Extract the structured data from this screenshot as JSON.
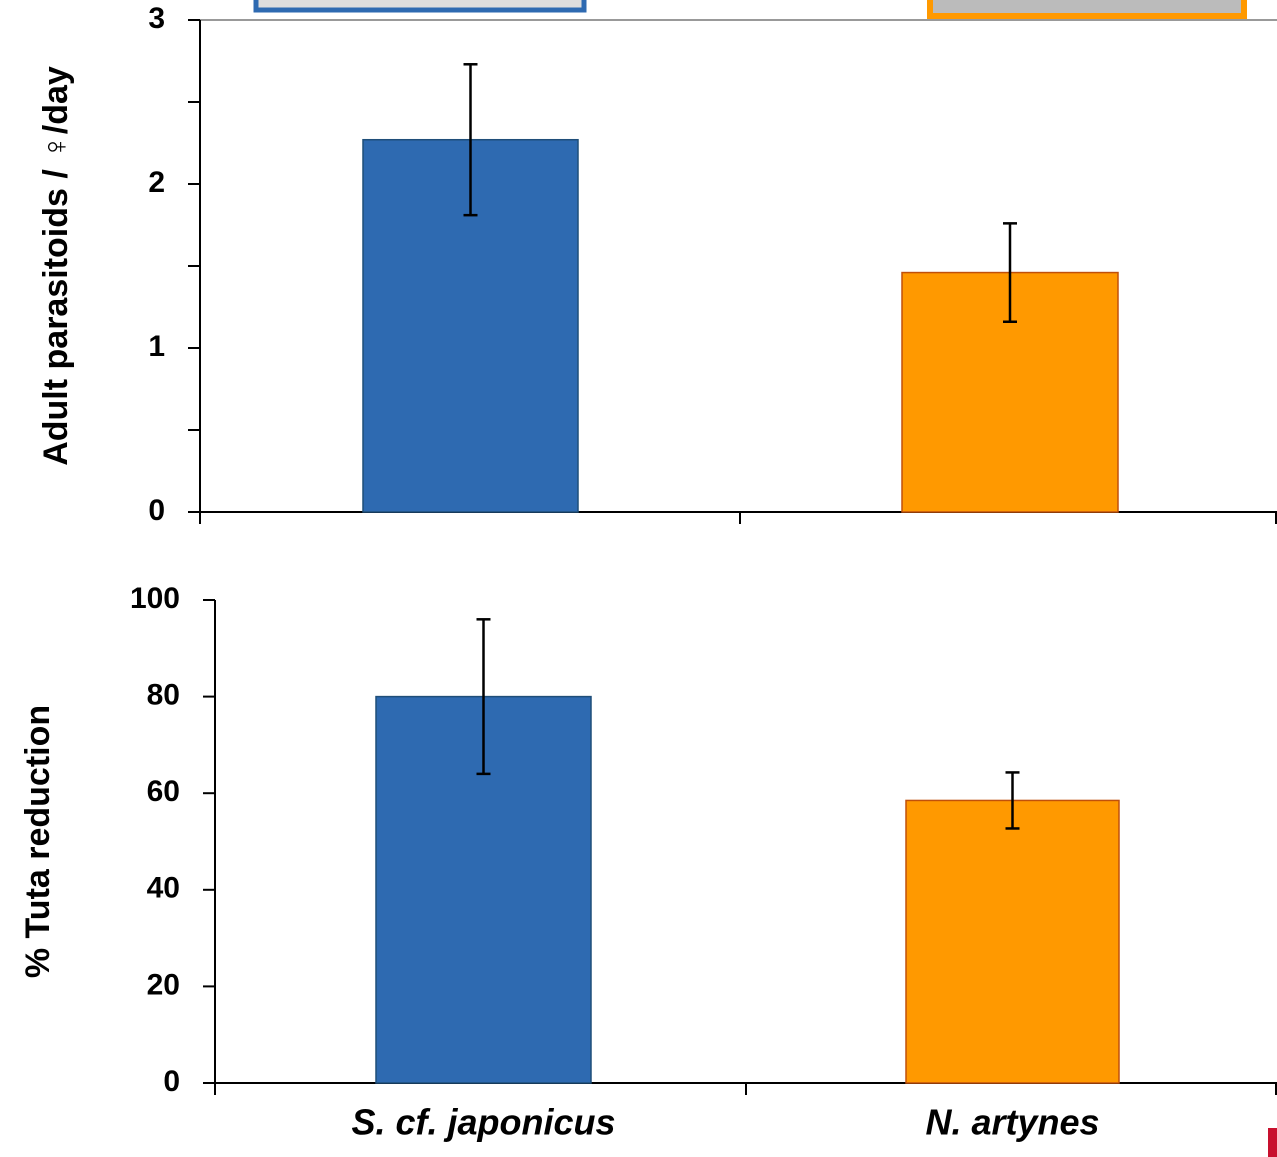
{
  "chart_data": [
    {
      "type": "bar",
      "y_label": "Adult parasitoids / ♀/day",
      "categories": [
        null,
        null
      ],
      "series": [
        {
          "values": [
            2.27,
            1.46
          ],
          "errors": [
            0.46,
            0.3
          ],
          "colors": [
            "#2e6ab1",
            "#ff9900"
          ]
        }
      ],
      "ylim": [
        0,
        3
      ],
      "yticks": [
        0,
        1,
        2,
        3
      ]
    },
    {
      "type": "bar",
      "y_label": "% Tuta reduction",
      "categories": [
        "S. cf. japonicus",
        "N. artynes"
      ],
      "series": [
        {
          "values": [
            80,
            58.5
          ],
          "errors": [
            16,
            5.8
          ],
          "colors": [
            "#2e6ab1",
            "#ff9900"
          ]
        }
      ],
      "ylim": [
        0,
        100
      ],
      "yticks": [
        0,
        20,
        40,
        60,
        80,
        100
      ]
    }
  ]
}
